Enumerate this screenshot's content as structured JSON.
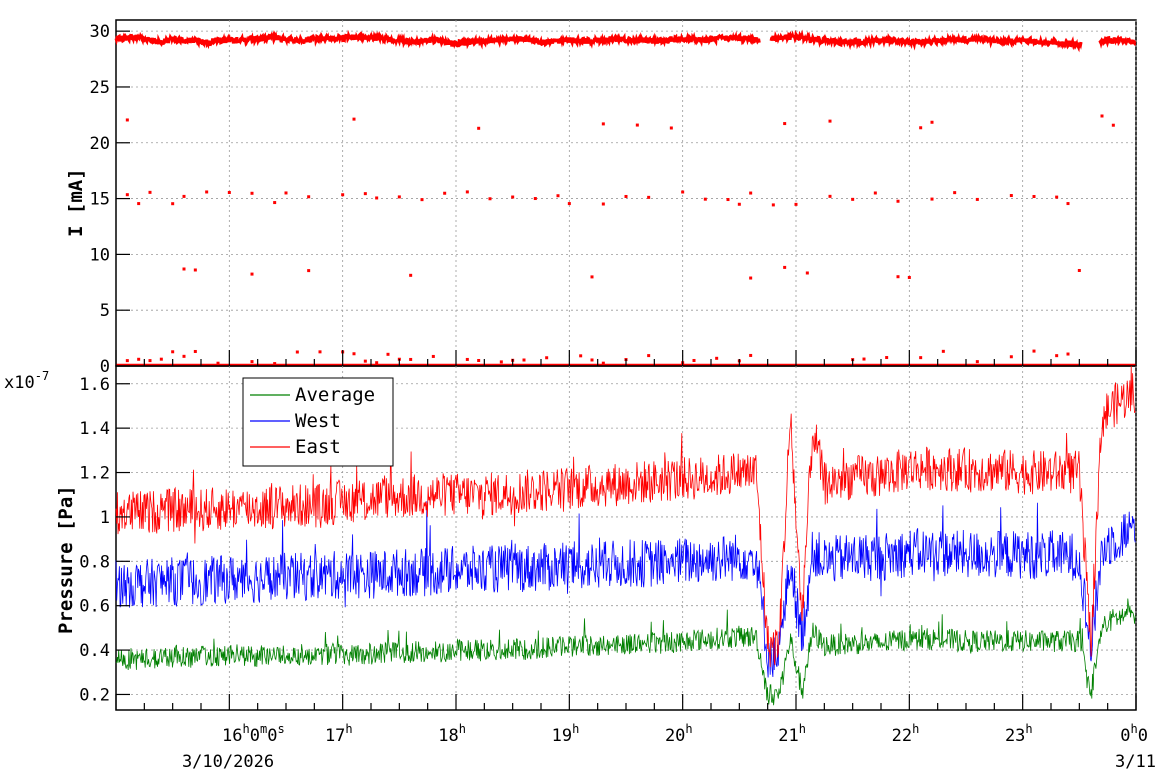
{
  "chart_data": [
    {
      "type": "scatter",
      "ylabel": "I [mA]",
      "ylim": [
        0,
        31
      ],
      "yticks": [
        0,
        5,
        10,
        15,
        20,
        25,
        30
      ],
      "xlim_hours": [
        15.0,
        24.0
      ],
      "grid": true,
      "color": "#ff0000",
      "series": [
        {
          "values_description_free": true,
          "x_hours": [
            15.0,
            15.1,
            15.2,
            15.3,
            15.4,
            15.5,
            15.6,
            15.7,
            15.8,
            15.9,
            16.0,
            16.2,
            16.4,
            16.6,
            16.8,
            17.0,
            17.2,
            17.4,
            17.6,
            17.8,
            18.0,
            18.2,
            18.4,
            18.6,
            18.8,
            19.0,
            19.2,
            19.4,
            19.6,
            19.8,
            20.0,
            20.2,
            20.4,
            20.6,
            20.65,
            20.85,
            21.0,
            21.2,
            21.4,
            21.6,
            21.8,
            22.0,
            22.2,
            22.4,
            22.6,
            22.8,
            23.0,
            23.2,
            23.4,
            23.5,
            23.65,
            23.8,
            24.0
          ],
          "y_mA": [
            29.3,
            29.4,
            29.5,
            29.2,
            29.0,
            29.3,
            29.1,
            29.2,
            29.0,
            29.2,
            29.1,
            29.3,
            29.4,
            29.2,
            29.3,
            29.4,
            29.5,
            29.3,
            29.1,
            29.2,
            28.9,
            29.1,
            29.2,
            29.3,
            29.0,
            29.2,
            29.1,
            29.3,
            29.2,
            29.1,
            29.3,
            29.2,
            29.4,
            29.3,
            29.2,
            29.4,
            29.5,
            29.2,
            29.0,
            29.1,
            29.2,
            29.0,
            29.1,
            29.2,
            29.3,
            29.1,
            29.2,
            29.0,
            28.9,
            28.8,
            29.1,
            29.2,
            29.0
          ]
        }
      ],
      "scatter_levels_mA": [
        {
          "level": 21.8,
          "x_hours": [
            15.1,
            17.1,
            18.2,
            19.3,
            19.6,
            19.9,
            20.9,
            21.3,
            22.1,
            22.2,
            23.7,
            23.8
          ]
        },
        {
          "level": 15.0,
          "x_hours": [
            15.1,
            15.2,
            15.3,
            15.5,
            15.6,
            15.8,
            16.0,
            16.2,
            16.4,
            16.5,
            16.7,
            17.0,
            17.2,
            17.3,
            17.5,
            17.7,
            17.9,
            18.1,
            18.3,
            18.5,
            18.7,
            18.9,
            19.0,
            19.3,
            19.5,
            19.7,
            20.0,
            20.2,
            20.4,
            20.5,
            20.6,
            20.8,
            21.0,
            21.3,
            21.5,
            21.7,
            21.9,
            22.2,
            22.4,
            22.6,
            22.9,
            23.1,
            23.3,
            23.4
          ]
        },
        {
          "level": 8.3,
          "x_hours": [
            15.6,
            15.7,
            16.2,
            16.7,
            17.6,
            19.2,
            20.6,
            20.9,
            21.1,
            21.9,
            22.0,
            23.5
          ]
        },
        {
          "level": 0.8,
          "x_hours": [
            15.1,
            15.2,
            15.3,
            15.4,
            15.5,
            15.6,
            15.7,
            15.9,
            16.2,
            16.4,
            16.6,
            16.8,
            17.0,
            17.1,
            17.2,
            17.3,
            17.4,
            17.5,
            17.6,
            17.8,
            18.1,
            18.2,
            18.4,
            18.5,
            18.6,
            18.8,
            19.1,
            19.2,
            19.3,
            19.5,
            19.7,
            20.0,
            20.1,
            20.3,
            20.5,
            20.6,
            21.5,
            21.6,
            21.8,
            22.1,
            22.3,
            22.6,
            22.9,
            23.1,
            23.3,
            23.4
          ]
        }
      ]
    },
    {
      "type": "line",
      "ylabel": "Pressure [Pa]",
      "yexponent": "x10",
      "yexponent_power": "-7",
      "ylim": [
        0.13,
        1.68
      ],
      "yticks": [
        0.2,
        0.4,
        0.6,
        0.8,
        1.0,
        1.2,
        1.4,
        1.6
      ],
      "ytick_labels": [
        "0.2",
        "0.4",
        "0.6",
        "0.8",
        "1",
        "1.2",
        "1.4",
        "1.6"
      ],
      "xlim_hours": [
        15.0,
        24.0
      ],
      "grid": true,
      "legend_position": "top-left",
      "x_hours": [
        15.0,
        15.25,
        15.5,
        15.75,
        16.0,
        16.25,
        16.5,
        16.75,
        17.0,
        17.25,
        17.5,
        17.75,
        18.0,
        18.25,
        18.5,
        18.75,
        19.0,
        19.25,
        19.5,
        19.75,
        20.0,
        20.25,
        20.5,
        20.65,
        20.75,
        20.85,
        20.95,
        21.05,
        21.15,
        21.25,
        21.5,
        21.75,
        22.0,
        22.25,
        22.5,
        22.75,
        23.0,
        23.25,
        23.5,
        23.6,
        23.7,
        23.8,
        24.0
      ],
      "series": [
        {
          "name": "Average",
          "color": "#008000",
          "values": [
            0.36,
            0.36,
            0.37,
            0.37,
            0.38,
            0.37,
            0.38,
            0.38,
            0.38,
            0.38,
            0.39,
            0.39,
            0.4,
            0.4,
            0.4,
            0.41,
            0.42,
            0.42,
            0.43,
            0.43,
            0.44,
            0.45,
            0.46,
            0.46,
            0.2,
            0.2,
            0.45,
            0.22,
            0.48,
            0.42,
            0.43,
            0.43,
            0.45,
            0.45,
            0.44,
            0.44,
            0.44,
            0.44,
            0.44,
            0.2,
            0.5,
            0.54,
            0.57
          ]
        },
        {
          "name": "West",
          "color": "#0000ff",
          "values": [
            0.7,
            0.7,
            0.71,
            0.71,
            0.72,
            0.72,
            0.73,
            0.73,
            0.74,
            0.74,
            0.75,
            0.75,
            0.76,
            0.76,
            0.77,
            0.77,
            0.78,
            0.78,
            0.79,
            0.79,
            0.8,
            0.81,
            0.82,
            0.82,
            0.38,
            0.38,
            0.8,
            0.45,
            0.85,
            0.8,
            0.82,
            0.82,
            0.84,
            0.84,
            0.83,
            0.83,
            0.83,
            0.83,
            0.82,
            0.4,
            0.85,
            0.9,
            0.95
          ]
        },
        {
          "name": "East",
          "color": "#ff0000",
          "values": [
            1.02,
            1.02,
            1.03,
            1.03,
            1.04,
            1.04,
            1.05,
            1.05,
            1.07,
            1.08,
            1.09,
            1.1,
            1.1,
            1.1,
            1.11,
            1.12,
            1.13,
            1.14,
            1.15,
            1.16,
            1.17,
            1.18,
            1.2,
            1.2,
            0.42,
            0.42,
            1.45,
            0.55,
            1.4,
            1.15,
            1.18,
            1.18,
            1.22,
            1.22,
            1.21,
            1.21,
            1.2,
            1.2,
            1.2,
            0.42,
            1.45,
            1.5,
            1.57
          ]
        }
      ]
    }
  ],
  "x_axis": {
    "tick_hours": [
      16,
      17,
      18,
      19,
      20,
      21,
      22,
      23,
      24
    ],
    "tick_labels": [
      {
        "base": "16",
        "rest": "0",
        "rest2": "0",
        "unit1": "h",
        "unit2": "m",
        "unit3": "s"
      },
      {
        "base": "17",
        "unit1": "h"
      },
      {
        "base": "18",
        "unit1": "h"
      },
      {
        "base": "19",
        "unit1": "h"
      },
      {
        "base": "20",
        "unit1": "h"
      },
      {
        "base": "21",
        "unit1": "h"
      },
      {
        "base": "22",
        "unit1": "h"
      },
      {
        "base": "23",
        "unit1": "h"
      },
      {
        "base": "0",
        "rest": "0",
        "unit1": "h"
      }
    ],
    "date_labels": [
      "3/10/2026",
      "3/11"
    ]
  }
}
